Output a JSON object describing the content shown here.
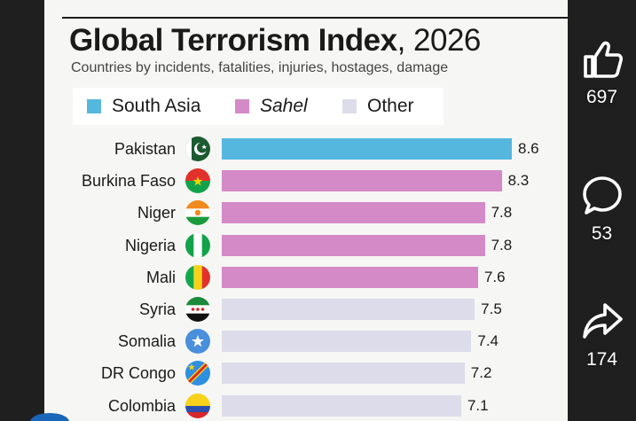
{
  "chart": {
    "title": "Global Terrorism Index",
    "title_year": ", 2026",
    "subtitle": "Countries by incidents, fatalities, injuries, hostages, damage",
    "legend": [
      {
        "label": "South Asia",
        "color": "#56b7de",
        "italic": false
      },
      {
        "label": "Sahel",
        "color": "#d38ac6",
        "italic": true
      },
      {
        "label": "Other",
        "color": "#dcdcea",
        "italic": false
      }
    ]
  },
  "chart_data": {
    "type": "bar",
    "orientation": "horizontal",
    "title": "Global Terrorism Index, 2026",
    "subtitle": "Countries by incidents, fatalities, injuries, hostages, damage",
    "categories": [
      "Pakistan",
      "Burkina Faso",
      "Niger",
      "Nigeria",
      "Mali",
      "Syria",
      "Somalia",
      "DR Congo",
      "Colombia"
    ],
    "values": [
      8.6,
      8.3,
      7.8,
      7.8,
      7.6,
      7.5,
      7.4,
      7.2,
      7.1
    ],
    "value_labels": [
      "8.6",
      "8.3",
      "7.8",
      "7.8",
      "7.6",
      "7.5",
      "7.4",
      "7.2",
      "7.1"
    ],
    "groups": [
      "South Asia",
      "Sahel",
      "Sahel",
      "Sahel",
      "Sahel",
      "Other",
      "Other",
      "Other",
      "Other"
    ],
    "legend": [
      "South Asia",
      "Sahel",
      "Other"
    ],
    "legend_position": "top",
    "grid": false
  },
  "flags": [
    "pakistan-flag-icon",
    "burkina-faso-flag-icon",
    "niger-flag-icon",
    "nigeria-flag-icon",
    "mali-flag-icon",
    "syria-flag-icon",
    "somalia-flag-icon",
    "dr-congo-flag-icon",
    "colombia-flag-icon"
  ],
  "actions": {
    "like_count": "697",
    "comment_count": "53",
    "share_count": "174"
  }
}
